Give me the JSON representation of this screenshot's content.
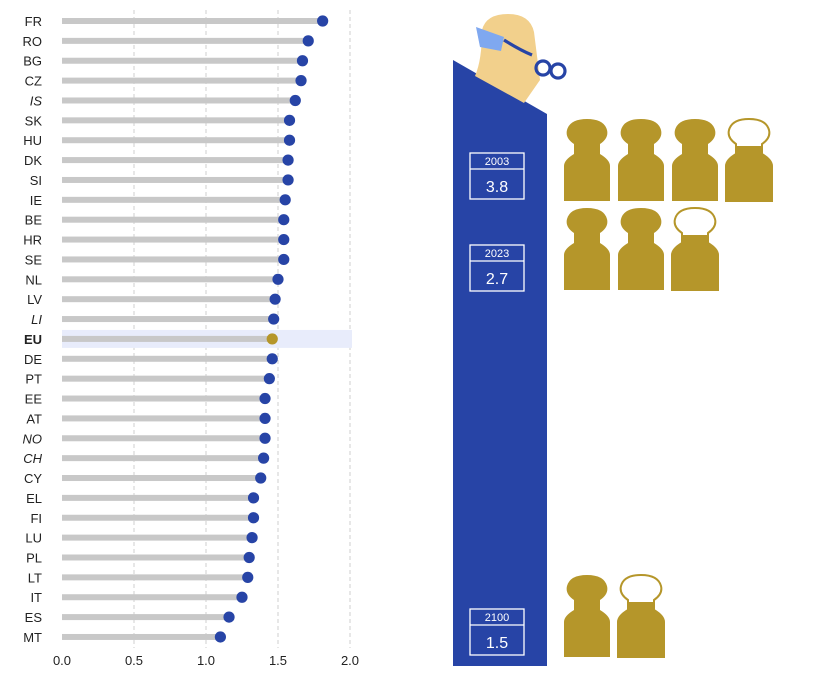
{
  "chart_data": {
    "type": "dot",
    "orientation": "horizontal",
    "categories": [
      "FR",
      "RO",
      "BG",
      "CZ",
      "IS",
      "SK",
      "HU",
      "DK",
      "SI",
      "IE",
      "BE",
      "HR",
      "SE",
      "NL",
      "LV",
      "LI",
      "EU",
      "DE",
      "PT",
      "EE",
      "AT",
      "NO",
      "CH",
      "CY",
      "EL",
      "FI",
      "LU",
      "PL",
      "LT",
      "IT",
      "ES",
      "MT"
    ],
    "italic_categories": [
      "IS",
      "LI",
      "NO",
      "CH"
    ],
    "highlight_category": "EU",
    "values": [
      1.81,
      1.71,
      1.67,
      1.66,
      1.62,
      1.58,
      1.58,
      1.57,
      1.57,
      1.55,
      1.54,
      1.54,
      1.54,
      1.5,
      1.48,
      1.47,
      1.46,
      1.46,
      1.44,
      1.41,
      1.41,
      1.41,
      1.4,
      1.38,
      1.33,
      1.33,
      1.32,
      1.3,
      1.29,
      1.25,
      1.16,
      1.1
    ],
    "xlim": [
      0,
      2.0
    ],
    "xticks": [
      "0.0",
      "0.5",
      "1.0",
      "1.5",
      "2.0"
    ],
    "grid": "vertical dashed",
    "colors": {
      "dot": "#2744a6",
      "highlight_dot": "#b5962a",
      "bar": "#c8c8c8",
      "highlight_band": "#e8ecfb",
      "highlight_text": "#2744a6"
    }
  },
  "infographic": {
    "colors": {
      "bar": "#2744a6",
      "figure": "#b5962a",
      "face": "#f2d08c",
      "glasses": "#7fa8f0"
    },
    "boxes": [
      {
        "year": "2003",
        "value": "3.8",
        "figures": 3.8
      },
      {
        "year": "2023",
        "value": "2.7",
        "figures": 2.7
      },
      {
        "year": "2100",
        "value": "1.5",
        "figures": 1.5
      }
    ]
  }
}
